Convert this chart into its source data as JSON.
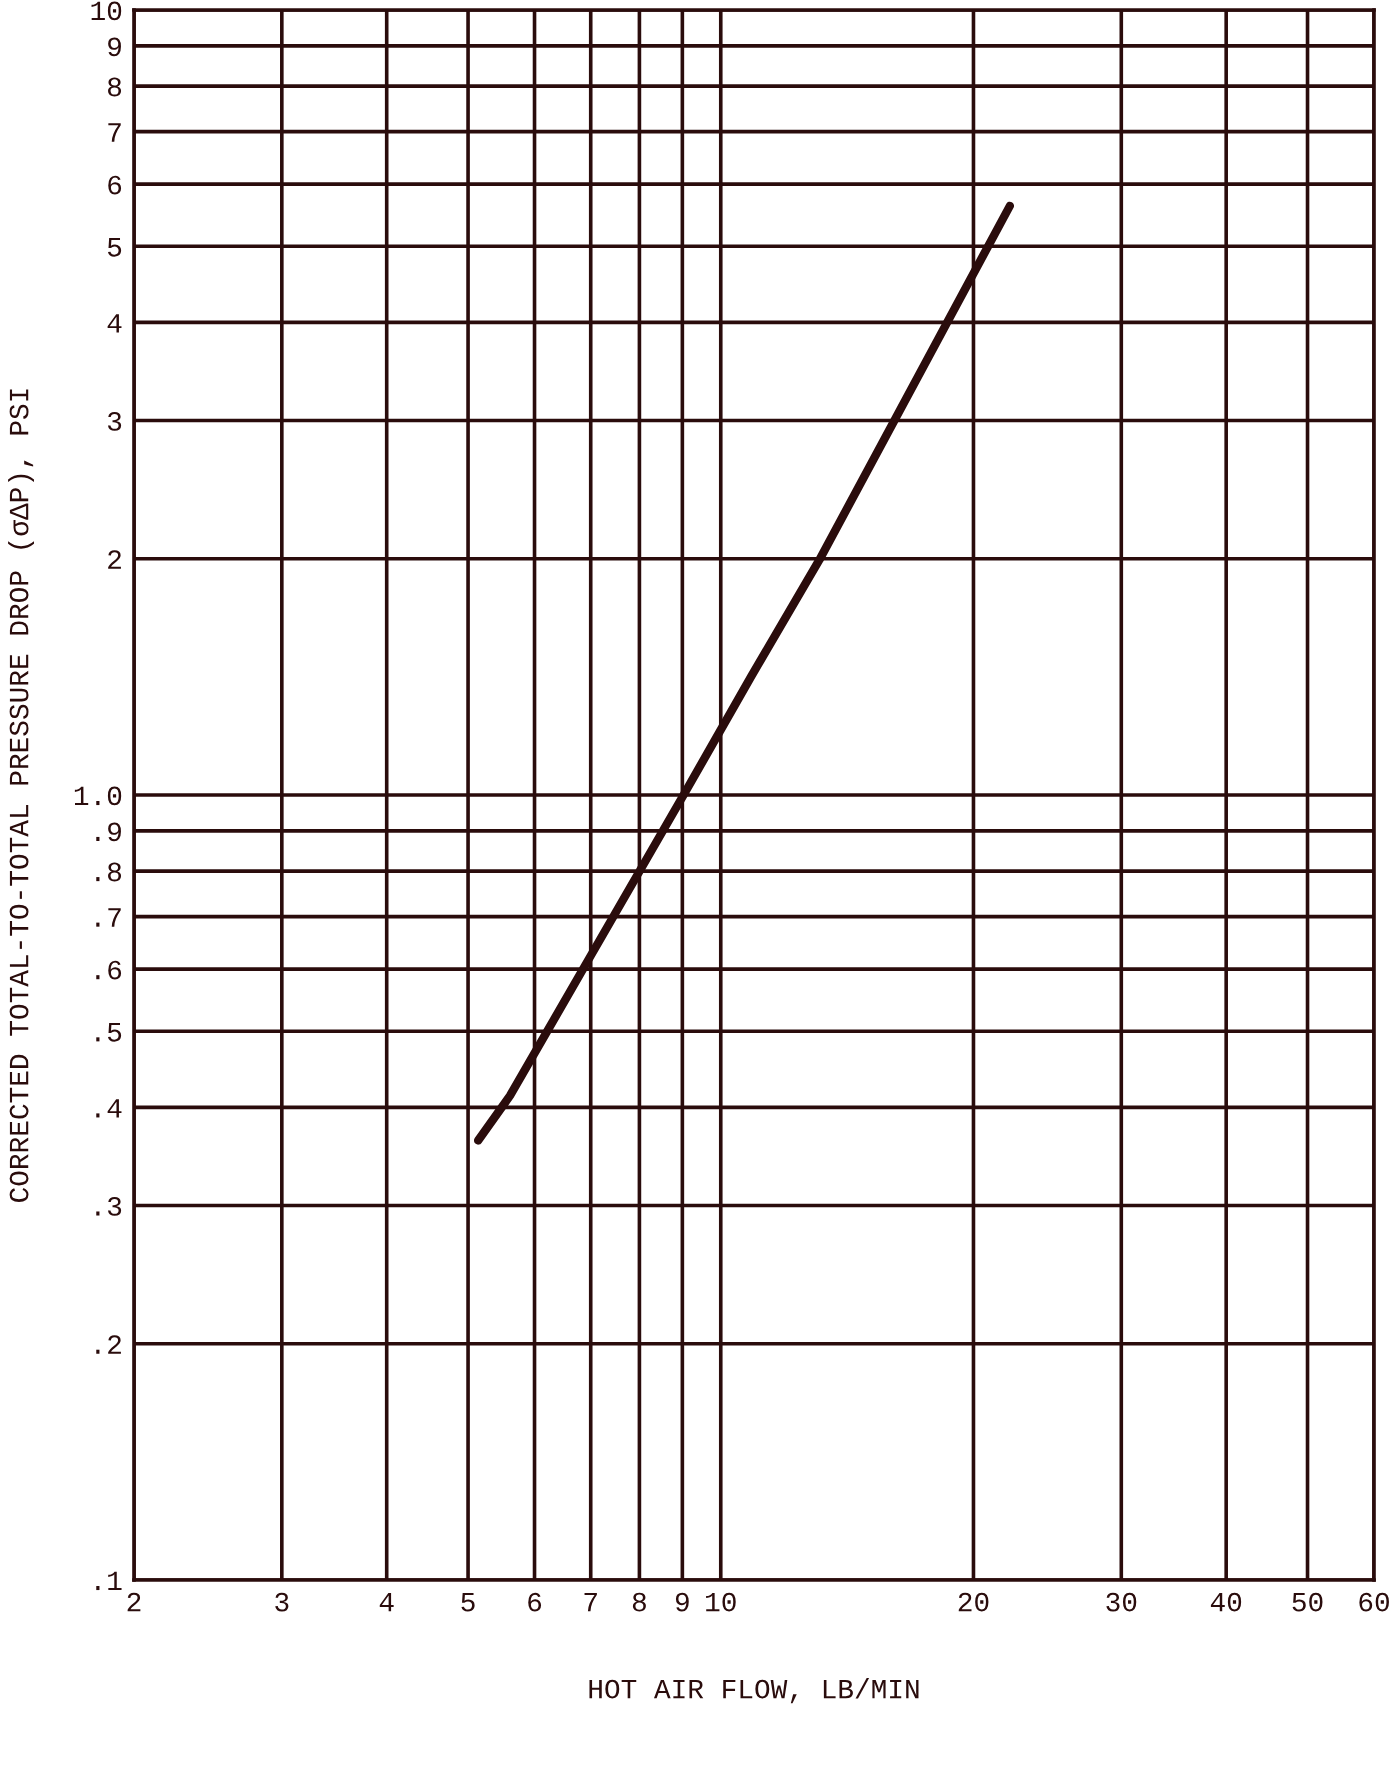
{
  "chart_data": {
    "type": "line",
    "xlabel": "HOT AIR FLOW, LB/MIN",
    "ylabel": "CORRECTED TOTAL-TO-TOTAL PRESSURE DROP (σΔP), PSI",
    "log": "xy",
    "grid": true,
    "marker": "none",
    "line_style": "solid",
    "series": [
      {
        "color": "#2a0c0c",
        "x": [
          5.14,
          5.61,
          7.0,
          9.03,
          10.88,
          13.11,
          22.1
        ],
        "values": [
          0.363,
          0.414,
          0.624,
          1.0,
          1.418,
          1.994,
          5.63
        ]
      }
    ],
    "xlim": [
      2,
      60
    ],
    "ylim": [
      0.1,
      10
    ],
    "xticks": [
      2,
      3,
      4,
      5,
      6,
      7,
      8,
      9,
      10,
      20,
      30,
      40,
      50,
      60
    ],
    "yticks": [
      {
        "value": 0.1,
        "label": ".1"
      },
      {
        "value": 0.2,
        "label": ".2"
      },
      {
        "value": 0.3,
        "label": ".3"
      },
      {
        "value": 0.4,
        "label": ".4"
      },
      {
        "value": 0.5,
        "label": ".5"
      },
      {
        "value": 0.6,
        "label": ".6"
      },
      {
        "value": 0.7,
        "label": ".7"
      },
      {
        "value": 0.8,
        "label": ".8"
      },
      {
        "value": 0.9,
        "label": ".9"
      },
      {
        "value": 1.0,
        "label": "1.0"
      },
      2,
      3,
      4,
      5,
      6,
      7,
      8,
      9,
      10
    ]
  }
}
